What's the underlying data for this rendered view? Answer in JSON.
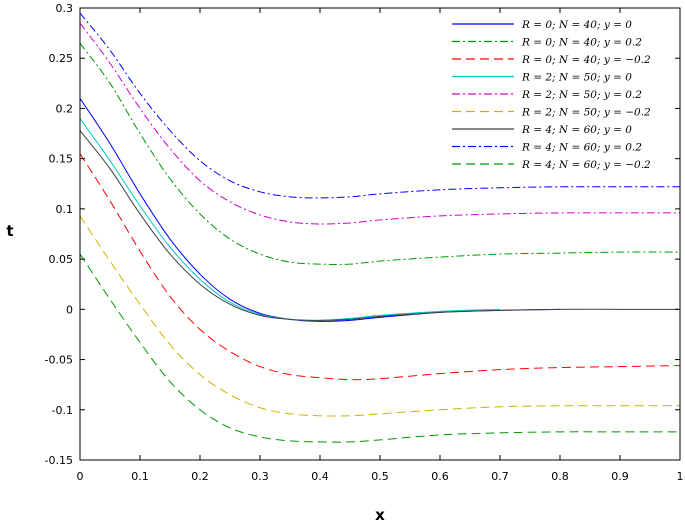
{
  "chart_data": {
    "type": "line",
    "title": "",
    "xlabel": "x",
    "ylabel": "t",
    "xlim": [
      0,
      1
    ],
    "ylim": [
      -0.15,
      0.3
    ],
    "grid": false,
    "legend_position": "top-right",
    "x_ticks": [
      "0",
      "0.1",
      "0.2",
      "0.3",
      "0.4",
      "0.5",
      "0.6",
      "0.7",
      "0.8",
      "0.9",
      "1"
    ],
    "y_ticks": [
      "-0.15",
      "-0.1",
      "-0.05",
      "0",
      "0.05",
      "0.1",
      "0.15",
      "0.2",
      "0.25",
      "0.3"
    ],
    "x_tick_values": [
      0,
      0.1,
      0.2,
      0.3,
      0.4,
      0.5,
      0.6,
      0.7,
      0.8,
      0.9,
      1
    ],
    "y_tick_values": [
      -0.15,
      -0.1,
      -0.05,
      0,
      0.05,
      0.1,
      0.15,
      0.2,
      0.25,
      0.3
    ],
    "series": [
      {
        "name": "R = 0; N = 40; y = 0",
        "color": "#0000ff",
        "dash": "solid",
        "x": [
          0,
          0.05,
          0.1,
          0.15,
          0.2,
          0.25,
          0.3,
          0.35,
          0.4,
          0.45,
          0.5,
          0.6,
          0.7,
          0.8
        ],
        "y": [
          0.21,
          0.165,
          0.115,
          0.07,
          0.035,
          0.01,
          -0.004,
          -0.01,
          -0.012,
          -0.011,
          -0.008,
          -0.003,
          -0.001,
          0
        ]
      },
      {
        "name": "R = 0; N = 40; y = 0.2",
        "color": "#009900",
        "dash": "dashdot",
        "x": [
          0,
          0.05,
          0.1,
          0.15,
          0.2,
          0.25,
          0.3,
          0.35,
          0.4,
          0.45,
          0.5,
          0.6,
          0.7,
          0.8,
          0.9,
          1
        ],
        "y": [
          0.265,
          0.225,
          0.175,
          0.13,
          0.095,
          0.07,
          0.055,
          0.047,
          0.045,
          0.045,
          0.048,
          0.052,
          0.055,
          0.056,
          0.057,
          0.057
        ]
      },
      {
        "name": "R = 0; N = 40; y = −0.2",
        "color": "#ff0000",
        "dash": "dashed",
        "x": [
          0,
          0.05,
          0.1,
          0.15,
          0.2,
          0.25,
          0.3,
          0.35,
          0.4,
          0.45,
          0.5,
          0.6,
          0.7,
          0.8,
          0.9,
          1
        ],
        "y": [
          0.155,
          0.108,
          0.058,
          0.013,
          -0.02,
          -0.042,
          -0.057,
          -0.065,
          -0.068,
          -0.07,
          -0.069,
          -0.064,
          -0.06,
          -0.058,
          -0.057,
          -0.056
        ]
      },
      {
        "name": "R = 2; N = 50; y = 0",
        "color": "#00c8c8",
        "dash": "solid",
        "x": [
          0,
          0.05,
          0.1,
          0.15,
          0.2,
          0.25,
          0.3,
          0.35,
          0.4,
          0.45,
          0.5,
          0.6,
          0.7
        ],
        "y": [
          0.19,
          0.148,
          0.103,
          0.062,
          0.03,
          0.007,
          -0.005,
          -0.01,
          -0.011,
          -0.009,
          -0.006,
          -0.002,
          0
        ]
      },
      {
        "name": "R = 2; N = 50; y = 0.2",
        "color": "#cc00cc",
        "dash": "dashdot",
        "x": [
          0,
          0.05,
          0.1,
          0.15,
          0.2,
          0.25,
          0.3,
          0.35,
          0.4,
          0.45,
          0.5,
          0.6,
          0.7,
          0.8,
          0.9,
          1
        ],
        "y": [
          0.285,
          0.245,
          0.2,
          0.16,
          0.128,
          0.107,
          0.094,
          0.087,
          0.085,
          0.086,
          0.089,
          0.093,
          0.095,
          0.096,
          0.096,
          0.096
        ]
      },
      {
        "name": "R = 2; N = 50; y = −0.2",
        "color": "#c8b400",
        "dash": "dashed",
        "x": [
          0,
          0.05,
          0.1,
          0.15,
          0.2,
          0.25,
          0.3,
          0.35,
          0.4,
          0.45,
          0.5,
          0.6,
          0.7,
          0.8,
          0.9,
          1
        ],
        "y": [
          0.093,
          0.048,
          0.005,
          -0.035,
          -0.065,
          -0.085,
          -0.098,
          -0.104,
          -0.106,
          -0.106,
          -0.104,
          -0.1,
          -0.097,
          -0.096,
          -0.096,
          -0.096
        ]
      },
      {
        "name": "R = 4; N = 60; y = 0",
        "color": "#404040",
        "dash": "solid",
        "x": [
          0,
          0.05,
          0.1,
          0.15,
          0.2,
          0.25,
          0.3,
          0.35,
          0.4,
          0.45,
          0.5,
          0.6,
          0.7,
          0.8,
          0.9,
          1
        ],
        "y": [
          0.178,
          0.14,
          0.095,
          0.055,
          0.025,
          0.005,
          -0.006,
          -0.01,
          -0.011,
          -0.01,
          -0.007,
          -0.003,
          -0.001,
          0,
          0,
          0
        ]
      },
      {
        "name": "R = 4; N = 60; y = 0.2",
        "color": "#0000ff",
        "dash": "dashdot",
        "x": [
          0,
          0.05,
          0.1,
          0.15,
          0.2,
          0.25,
          0.3,
          0.35,
          0.4,
          0.45,
          0.5,
          0.6,
          0.7,
          0.8,
          0.9,
          1
        ],
        "y": [
          0.295,
          0.258,
          0.215,
          0.178,
          0.148,
          0.128,
          0.117,
          0.112,
          0.111,
          0.112,
          0.115,
          0.119,
          0.121,
          0.122,
          0.122,
          0.122
        ]
      },
      {
        "name": "R = 4; N = 60; y = −0.2",
        "color": "#009900",
        "dash": "dashed",
        "x": [
          0,
          0.05,
          0.1,
          0.15,
          0.2,
          0.25,
          0.3,
          0.35,
          0.4,
          0.45,
          0.5,
          0.6,
          0.7,
          0.8,
          0.9,
          1
        ],
        "y": [
          0.055,
          0.01,
          -0.033,
          -0.072,
          -0.1,
          -0.118,
          -0.127,
          -0.131,
          -0.132,
          -0.132,
          -0.13,
          -0.125,
          -0.123,
          -0.122,
          -0.122,
          -0.122
        ]
      }
    ]
  }
}
